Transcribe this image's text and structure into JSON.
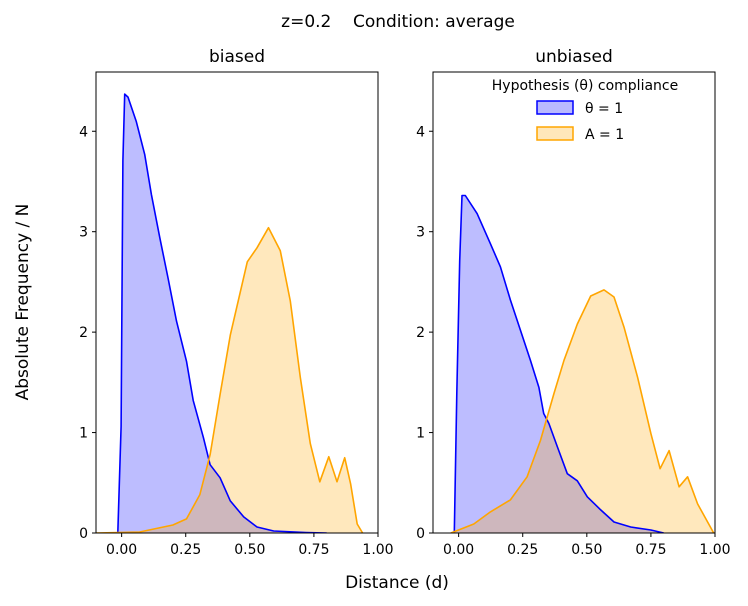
{
  "figure": {
    "suptitle": "z=0.2    Condition: average",
    "xlabel": "Distance (d)",
    "ylabel": "Absolute Frequency / N"
  },
  "colors": {
    "theta": "#0000ff",
    "A": "#ffa500"
  },
  "legend": {
    "title": "Hypothesis (θ) compliance",
    "entries": [
      {
        "label": "θ = 1",
        "series": "theta"
      },
      {
        "label": "A = 1",
        "series": "A"
      }
    ],
    "placement": "upper-center of right panel"
  },
  "chart_data": [
    {
      "type": "area",
      "title": "biased",
      "xlim": [
        -0.1,
        1.0
      ],
      "ylim": [
        0,
        4.59
      ],
      "xticks": [
        "0.00",
        "0.25",
        "0.50",
        "0.75",
        "1.00"
      ],
      "yticks": [
        "0",
        "1",
        "2",
        "3",
        "4"
      ],
      "grid": false,
      "series": [
        {
          "name": "θ = 1",
          "key": "theta",
          "x": [
            -0.015,
            -0.002,
            0.005,
            0.012,
            0.025,
            0.057,
            0.09,
            0.116,
            0.149,
            0.181,
            0.214,
            0.253,
            0.279,
            0.319,
            0.345,
            0.384,
            0.424,
            0.476,
            0.528,
            0.593,
            0.72,
            0.8
          ],
          "y": [
            0,
            1.06,
            3.71,
            4.37,
            4.34,
            4.1,
            3.77,
            3.37,
            2.94,
            2.54,
            2.11,
            1.71,
            1.32,
            0.95,
            0.68,
            0.55,
            0.32,
            0.16,
            0.06,
            0.02,
            0.005,
            0
          ]
        },
        {
          "name": "A = 1",
          "key": "A",
          "x": [
            -0.1,
            0.07,
            0.2,
            0.253,
            0.305,
            0.345,
            0.384,
            0.424,
            0.49,
            0.528,
            0.573,
            0.619,
            0.658,
            0.697,
            0.736,
            0.773,
            0.808,
            0.84,
            0.87,
            0.893,
            0.919,
            0.94
          ],
          "y": [
            0,
            0.01,
            0.08,
            0.14,
            0.38,
            0.78,
            1.38,
            1.97,
            2.7,
            2.84,
            3.04,
            2.81,
            2.31,
            1.55,
            0.89,
            0.51,
            0.76,
            0.51,
            0.75,
            0.49,
            0.09,
            0
          ]
        }
      ]
    },
    {
      "type": "area",
      "title": "unbiased",
      "xlim": [
        -0.1,
        1.0
      ],
      "ylim": [
        0,
        4.59
      ],
      "xticks": [
        "0.00",
        "0.25",
        "0.50",
        "0.75",
        "1.00"
      ],
      "yticks": [
        "0",
        "1",
        "2",
        "3",
        "4"
      ],
      "grid": false,
      "series": [
        {
          "name": "θ = 1",
          "key": "theta",
          "x": [
            -0.017,
            -0.007,
            0.004,
            0.013,
            0.026,
            0.072,
            0.124,
            0.163,
            0.202,
            0.241,
            0.28,
            0.313,
            0.332,
            0.352,
            0.385,
            0.424,
            0.463,
            0.502,
            0.554,
            0.606,
            0.671,
            0.75,
            0.8
          ],
          "y": [
            0,
            1.39,
            2.71,
            3.36,
            3.36,
            3.18,
            2.88,
            2.65,
            2.32,
            2.02,
            1.72,
            1.45,
            1.19,
            1.09,
            0.86,
            0.59,
            0.52,
            0.36,
            0.23,
            0.11,
            0.06,
            0.03,
            0
          ]
        },
        {
          "name": "A = 1",
          "key": "A",
          "x": [
            -0.03,
            0.059,
            0.124,
            0.202,
            0.267,
            0.319,
            0.372,
            0.411,
            0.463,
            0.515,
            0.567,
            0.606,
            0.645,
            0.698,
            0.75,
            0.786,
            0.821,
            0.86,
            0.893,
            0.932,
            0.995
          ],
          "y": [
            0,
            0.09,
            0.21,
            0.33,
            0.56,
            0.92,
            1.39,
            1.72,
            2.08,
            2.36,
            2.42,
            2.35,
            2.05,
            1.55,
            0.99,
            0.64,
            0.82,
            0.46,
            0.56,
            0.29,
            0
          ]
        }
      ]
    }
  ]
}
